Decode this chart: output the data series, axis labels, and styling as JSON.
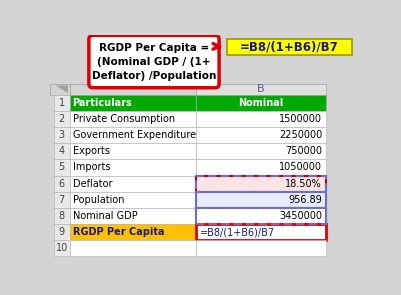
{
  "col_header_text": "#5a5a8a",
  "header_row_bg": "#00aa00",
  "header_row_text": "#ffffff",
  "last_row_bg": "#ffc000",
  "last_row_text": "#1a1a8a",
  "normal_bg": "#ffffff",
  "normal_text": "#000000",
  "deflator_bg": "#fce4e4",
  "deflator_border": "#c00000",
  "pop_bg": "#ebebff",
  "pop_border": "#7070c0",
  "nominal_gdp_border": "#7070c0",
  "formula_bar_bg": "#ffff00",
  "formula_bar_text": "#1a1a8a",
  "formula_bar_value": "=B8/(1+B6)/B7",
  "callout_bg": "#ffffff",
  "callout_border": "#dd0000",
  "callout_text": "RGDP Per Capita =\n(Nominal GDP / (1+\nDeflator) /Population",
  "col_b_label": "B",
  "outer_bg": "#d4d4d4",
  "rows": [
    {
      "num": "1",
      "label": "Particulars",
      "value": "Nominal",
      "style": "header"
    },
    {
      "num": "2",
      "label": "Private Consumption",
      "value": "1500000",
      "style": "normal"
    },
    {
      "num": "3",
      "label": "Government Expenditure",
      "value": "2250000",
      "style": "normal"
    },
    {
      "num": "4",
      "label": "Exports",
      "value": "750000",
      "style": "normal"
    },
    {
      "num": "5",
      "label": "Imports",
      "value": "1050000",
      "style": "normal"
    },
    {
      "num": "6",
      "label": "Deflator",
      "value": "18.50%",
      "style": "deflator"
    },
    {
      "num": "7",
      "label": "Population",
      "value": "956.89",
      "style": "population"
    },
    {
      "num": "8",
      "label": "Nominal GDP",
      "value": "3450000",
      "style": "nominal_gdp"
    },
    {
      "num": "9",
      "label": "RGDP Per Capita",
      "value": "=B8/(1+B6)/B7",
      "style": "last"
    },
    {
      "num": "10",
      "label": "",
      "value": "",
      "style": "normal"
    }
  ]
}
